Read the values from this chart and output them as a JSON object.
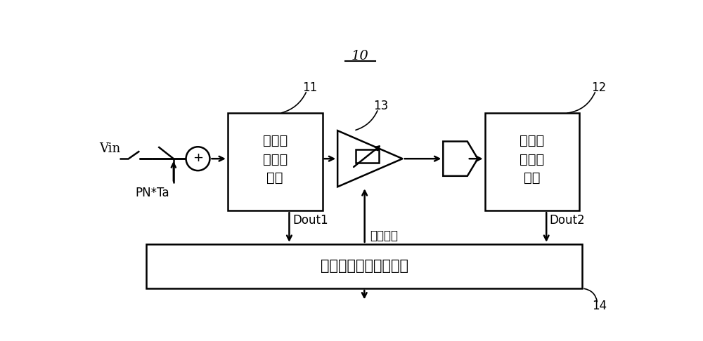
{
  "title": "10",
  "label_11": "11",
  "label_12": "12",
  "label_13": "13",
  "label_14": "14",
  "box1_text": "第一级\n模数转\n换器",
  "box2_text": "第二级\n模数转\n换器",
  "box_bottom_text": "数字校准控制逻辑电路",
  "vin_label": "Vin",
  "pn_label": "PN*Ta",
  "dout1_label": "Dout1",
  "dout2_label": "Dout2",
  "ctrl_label": "控制增益",
  "bg_color": "#ffffff",
  "line_color": "#000000",
  "box_fill": "#ffffff"
}
